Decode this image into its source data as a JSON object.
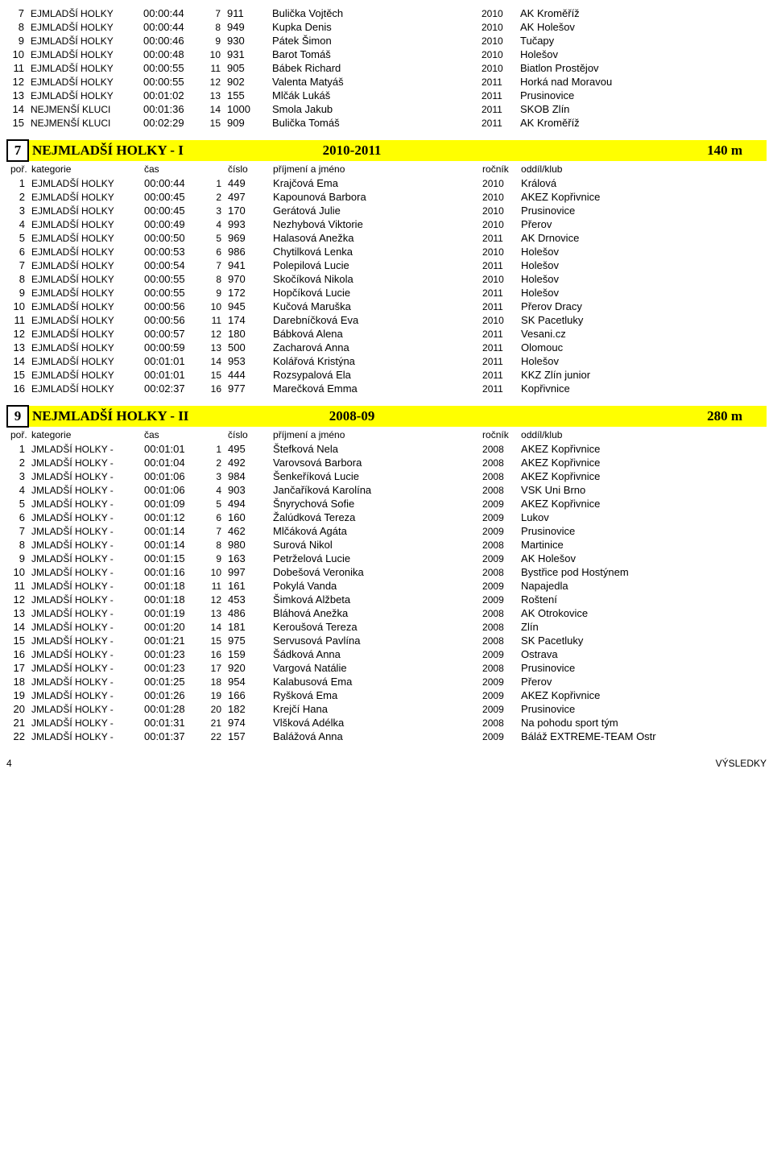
{
  "header_labels": {
    "rank": "poř.",
    "category": "kategorie",
    "time": "čas",
    "number": "číslo",
    "name": "příjmení a jméno",
    "year": "ročník",
    "club": "oddíl/klub"
  },
  "top_rows": [
    {
      "rank": "7",
      "cat": "EJMLADŠÍ HOLKY",
      "time": "00:00:44",
      "ord": "7",
      "num": "911",
      "name": "Bulička Vojtěch",
      "year": "2010",
      "club": "AK Kroměříž"
    },
    {
      "rank": "8",
      "cat": "EJMLADŠÍ HOLKY",
      "time": "00:00:44",
      "ord": "8",
      "num": "949",
      "name": "Kupka Denis",
      "year": "2010",
      "club": "AK Holešov"
    },
    {
      "rank": "9",
      "cat": "EJMLADŠÍ HOLKY",
      "time": "00:00:46",
      "ord": "9",
      "num": "930",
      "name": "Pátek Šimon",
      "year": "2010",
      "club": "Tučapy"
    },
    {
      "rank": "10",
      "cat": "EJMLADŠÍ HOLKY",
      "time": "00:00:48",
      "ord": "10",
      "num": "931",
      "name": "Barot Tomáš",
      "year": "2010",
      "club": "Holešov"
    },
    {
      "rank": "11",
      "cat": "EJMLADŠÍ HOLKY",
      "time": "00:00:55",
      "ord": "11",
      "num": "905",
      "name": "Bábek Richard",
      "year": "2010",
      "club": "Biatlon Prostějov"
    },
    {
      "rank": "12",
      "cat": "EJMLADŠÍ HOLKY",
      "time": "00:00:55",
      "ord": "12",
      "num": "902",
      "name": "Valenta Matyáš",
      "year": "2011",
      "club": "Horká nad Moravou"
    },
    {
      "rank": "13",
      "cat": "EJMLADŠÍ HOLKY",
      "time": "00:01:02",
      "ord": "13",
      "num": "155",
      "name": "Mlčák Lukáš",
      "year": "2011",
      "club": "Prusinovice"
    },
    {
      "rank": "14",
      "cat": "NEJMENŠÍ KLUCI",
      "time": "00:01:36",
      "ord": "14",
      "num": "1000",
      "name": "Smola Jakub",
      "year": "2011",
      "club": "SKOB Zlín"
    },
    {
      "rank": "15",
      "cat": "NEJMENŠÍ KLUCI",
      "time": "00:02:29",
      "ord": "15",
      "num": "909",
      "name": "Bulička Tomáš",
      "year": "2011",
      "club": "AK Kroměříž"
    }
  ],
  "section7": {
    "num": "7",
    "title": "NEJMLADŠÍ HOLKY - I",
    "years": "2010-2011",
    "dist": "140 m",
    "rows": [
      {
        "rank": "1",
        "cat": "EJMLADŠÍ HOLKY",
        "time": "00:00:44",
        "ord": "1",
        "num": "449",
        "name": "Krajčová Ema",
        "year": "2010",
        "club": "Králová"
      },
      {
        "rank": "2",
        "cat": "EJMLADŠÍ HOLKY",
        "time": "00:00:45",
        "ord": "2",
        "num": "497",
        "name": "Kapounová Barbora",
        "year": "2010",
        "club": "AKEZ Kopřivnice"
      },
      {
        "rank": "3",
        "cat": "EJMLADŠÍ HOLKY",
        "time": "00:00:45",
        "ord": "3",
        "num": "170",
        "name": "Gerátová Julie",
        "year": "2010",
        "club": "Prusinovice"
      },
      {
        "rank": "4",
        "cat": "EJMLADŠÍ HOLKY",
        "time": "00:00:49",
        "ord": "4",
        "num": "993",
        "name": "Nezhybová Viktorie",
        "year": "2010",
        "club": "Přerov"
      },
      {
        "rank": "5",
        "cat": "EJMLADŠÍ HOLKY",
        "time": "00:00:50",
        "ord": "5",
        "num": "969",
        "name": "Halasová Anežka",
        "year": "2011",
        "club": "AK Drnovice"
      },
      {
        "rank": "6",
        "cat": "EJMLADŠÍ HOLKY",
        "time": "00:00:53",
        "ord": "6",
        "num": "986",
        "name": "Chytilková Lenka",
        "year": "2010",
        "club": "Holešov"
      },
      {
        "rank": "7",
        "cat": "EJMLADŠÍ HOLKY",
        "time": "00:00:54",
        "ord": "7",
        "num": "941",
        "name": "Polepilová Lucie",
        "year": "2011",
        "club": "Holešov"
      },
      {
        "rank": "8",
        "cat": "EJMLADŠÍ HOLKY",
        "time": "00:00:55",
        "ord": "8",
        "num": "970",
        "name": "Skočíková Nikola",
        "year": "2010",
        "club": "Holešov"
      },
      {
        "rank": "9",
        "cat": "EJMLADŠÍ HOLKY",
        "time": "00:00:55",
        "ord": "9",
        "num": "172",
        "name": "Hopčíková Lucie",
        "year": "2011",
        "club": "Holešov"
      },
      {
        "rank": "10",
        "cat": "EJMLADŠÍ HOLKY",
        "time": "00:00:56",
        "ord": "10",
        "num": "945",
        "name": "Kučová Maruška",
        "year": "2011",
        "club": "Přerov Dracy"
      },
      {
        "rank": "11",
        "cat": "EJMLADŠÍ HOLKY",
        "time": "00:00:56",
        "ord": "11",
        "num": "174",
        "name": "Darebníčková Eva",
        "year": "2010",
        "club": "SK Pacetluky"
      },
      {
        "rank": "12",
        "cat": "EJMLADŠÍ HOLKY",
        "time": "00:00:57",
        "ord": "12",
        "num": "180",
        "name": "Bábková Alena",
        "year": "2011",
        "club": "Vesani.cz"
      },
      {
        "rank": "13",
        "cat": "EJMLADŠÍ HOLKY",
        "time": "00:00:59",
        "ord": "13",
        "num": "500",
        "name": "Zacharová Anna",
        "year": "2011",
        "club": "Olomouc"
      },
      {
        "rank": "14",
        "cat": "EJMLADŠÍ HOLKY",
        "time": "00:01:01",
        "ord": "14",
        "num": "953",
        "name": "Kolářová Kristýna",
        "year": "2011",
        "club": "Holešov"
      },
      {
        "rank": "15",
        "cat": "EJMLADŠÍ HOLKY",
        "time": "00:01:01",
        "ord": "15",
        "num": "444",
        "name": "Rozsypalová Ela",
        "year": "2011",
        "club": "KKZ Zlín junior"
      },
      {
        "rank": "16",
        "cat": "EJMLADŠÍ HOLKY",
        "time": "00:02:37",
        "ord": "16",
        "num": "977",
        "name": "Marečková Emma",
        "year": "2011",
        "club": "Kopřivnice"
      }
    ]
  },
  "section9": {
    "num": "9",
    "title": "NEJMLADŠÍ HOLKY - II",
    "years": "2008-09",
    "dist": "280 m",
    "rows": [
      {
        "rank": "1",
        "cat": "JMLADŠÍ HOLKY -",
        "time": "00:01:01",
        "ord": "1",
        "num": "495",
        "name": "Štefková Nela",
        "year": "2008",
        "club": "AKEZ Kopřivnice"
      },
      {
        "rank": "2",
        "cat": "JMLADŠÍ HOLKY -",
        "time": "00:01:04",
        "ord": "2",
        "num": "492",
        "name": "Varovsová Barbora",
        "year": "2008",
        "club": "AKEZ Kopřivnice"
      },
      {
        "rank": "3",
        "cat": "JMLADŠÍ HOLKY -",
        "time": "00:01:06",
        "ord": "3",
        "num": "984",
        "name": "Šenkeříková Lucie",
        "year": "2008",
        "club": "AKEZ Kopřivnice"
      },
      {
        "rank": "4",
        "cat": "JMLADŠÍ HOLKY -",
        "time": "00:01:06",
        "ord": "4",
        "num": "903",
        "name": "Jančaříková Karolína",
        "year": "2008",
        "club": "VSK Uni Brno"
      },
      {
        "rank": "5",
        "cat": "JMLADŠÍ HOLKY -",
        "time": "00:01:09",
        "ord": "5",
        "num": "494",
        "name": "Šnyrychová Sofie",
        "year": "2009",
        "club": "AKEZ Kopřivnice"
      },
      {
        "rank": "6",
        "cat": "JMLADŠÍ HOLKY -",
        "time": "00:01:12",
        "ord": "6",
        "num": "160",
        "name": "Žalúdková Tereza",
        "year": "2009",
        "club": "Lukov"
      },
      {
        "rank": "7",
        "cat": "JMLADŠÍ HOLKY -",
        "time": "00:01:14",
        "ord": "7",
        "num": "462",
        "name": "Mlčáková Agáta",
        "year": "2009",
        "club": "Prusinovice"
      },
      {
        "rank": "8",
        "cat": "JMLADŠÍ HOLKY -",
        "time": "00:01:14",
        "ord": "8",
        "num": "980",
        "name": "Surová Nikol",
        "year": "2008",
        "club": "Martinice"
      },
      {
        "rank": "9",
        "cat": "JMLADŠÍ HOLKY -",
        "time": "00:01:15",
        "ord": "9",
        "num": "163",
        "name": "Petrželová Lucie",
        "year": "2009",
        "club": "AK Holešov"
      },
      {
        "rank": "10",
        "cat": "JMLADŠÍ HOLKY -",
        "time": "00:01:16",
        "ord": "10",
        "num": "997",
        "name": "Dobešová Veronika",
        "year": "2008",
        "club": "Bystřice pod Hostýnem"
      },
      {
        "rank": "11",
        "cat": "JMLADŠÍ HOLKY -",
        "time": "00:01:18",
        "ord": "11",
        "num": "161",
        "name": "Pokylá Vanda",
        "year": "2009",
        "club": "Napajedla"
      },
      {
        "rank": "12",
        "cat": "JMLADŠÍ HOLKY -",
        "time": "00:01:18",
        "ord": "12",
        "num": "453",
        "name": "Šimková Alžbeta",
        "year": "2009",
        "club": "Roštení"
      },
      {
        "rank": "13",
        "cat": "JMLADŠÍ HOLKY -",
        "time": "00:01:19",
        "ord": "13",
        "num": "486",
        "name": "Bláhová Anežka",
        "year": "2008",
        "club": "AK Otrokovice"
      },
      {
        "rank": "14",
        "cat": "JMLADŠÍ HOLKY -",
        "time": "00:01:20",
        "ord": "14",
        "num": "181",
        "name": "Keroušová  Tereza",
        "year": "2008",
        "club": "Zlín"
      },
      {
        "rank": "15",
        "cat": "JMLADŠÍ HOLKY -",
        "time": "00:01:21",
        "ord": "15",
        "num": "975",
        "name": "Servusová Pavlína",
        "year": "2008",
        "club": "SK Pacetluky"
      },
      {
        "rank": "16",
        "cat": "JMLADŠÍ HOLKY -",
        "time": "00:01:23",
        "ord": "16",
        "num": "159",
        "name": "Šádková Anna",
        "year": "2009",
        "club": "Ostrava"
      },
      {
        "rank": "17",
        "cat": "JMLADŠÍ HOLKY -",
        "time": "00:01:23",
        "ord": "17",
        "num": "920",
        "name": "Vargová Natálie",
        "year": "2008",
        "club": "Prusinovice"
      },
      {
        "rank": "18",
        "cat": "JMLADŠÍ HOLKY -",
        "time": "00:01:25",
        "ord": "18",
        "num": "954",
        "name": "Kalabusová Ema",
        "year": "2009",
        "club": "Přerov"
      },
      {
        "rank": "19",
        "cat": "JMLADŠÍ HOLKY -",
        "time": "00:01:26",
        "ord": "19",
        "num": "166",
        "name": "Ryšková Ema",
        "year": "2009",
        "club": "AKEZ Kopřivnice"
      },
      {
        "rank": "20",
        "cat": "JMLADŠÍ HOLKY -",
        "time": "00:01:28",
        "ord": "20",
        "num": "182",
        "name": "Krejčí Hana",
        "year": "2009",
        "club": "Prusinovice"
      },
      {
        "rank": "21",
        "cat": "JMLADŠÍ HOLKY -",
        "time": "00:01:31",
        "ord": "21",
        "num": "974",
        "name": "Vlšková Adélka",
        "year": "2008",
        "club": "Na pohodu sport tým"
      },
      {
        "rank": "22",
        "cat": "JMLADŠÍ HOLKY -",
        "time": "00:01:37",
        "ord": "22",
        "num": "157",
        "name": "Balážová Anna",
        "year": "2009",
        "club": "Báláž EXTREME-TEAM Ostr"
      }
    ]
  },
  "footer": {
    "page": "4",
    "label": "VÝSLEDKY"
  }
}
